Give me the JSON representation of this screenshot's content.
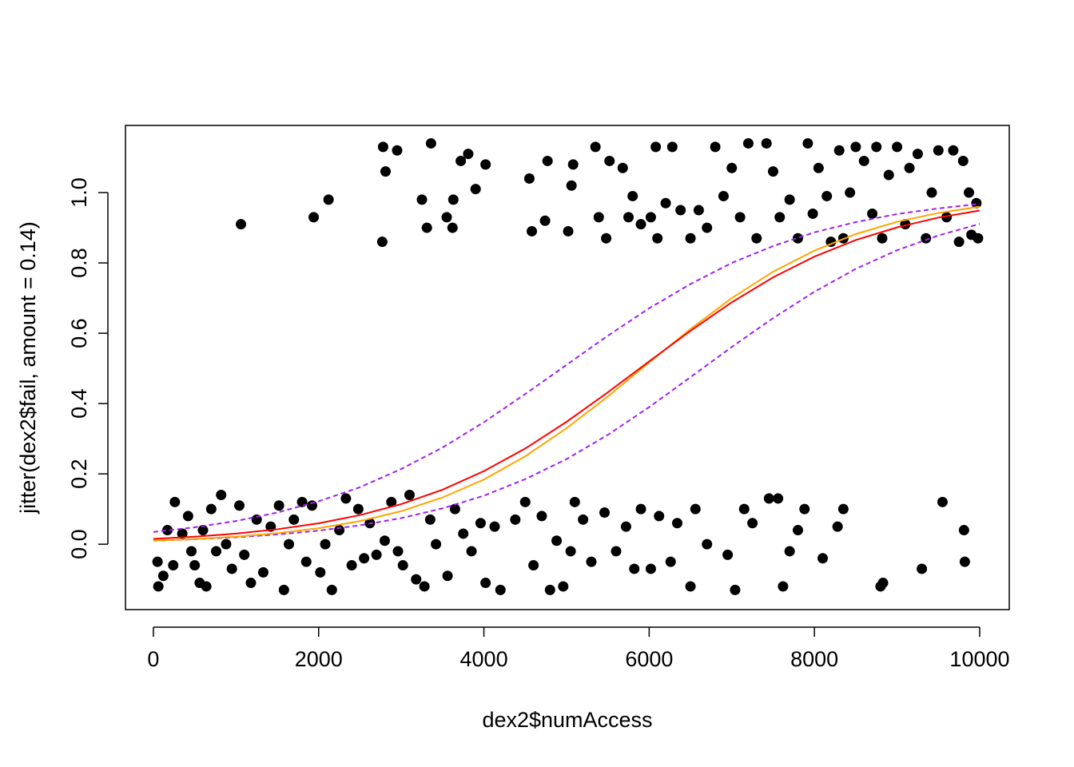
{
  "chart_data": {
    "type": "scatter",
    "xlabel": "dex2$numAccess",
    "ylabel": "jitter(dex2$fail, amount = 0.14)",
    "xlim": [
      -338,
      10358
    ],
    "ylim": [
      -0.186,
      1.191
    ],
    "xticks": [
      0,
      2000,
      4000,
      6000,
      8000,
      10000
    ],
    "yticks": [
      {
        "value": 0,
        "label": "0.0"
      },
      {
        "value": 0.2,
        "label": "0.2"
      },
      {
        "value": 0.4,
        "label": "0.4"
      },
      {
        "value": 0.6,
        "label": "0.6"
      },
      {
        "value": 0.8,
        "label": "0.8"
      },
      {
        "value": 1,
        "label": "1.0"
      }
    ],
    "points": {
      "color": "#000000",
      "x": [
        1060,
        1940,
        2120,
        2770,
        2780,
        2810,
        2950,
        3250,
        3310,
        3360,
        3550,
        3620,
        3630,
        3720,
        3810,
        3900,
        4020,
        4550,
        4580,
        4740,
        4770,
        5020,
        5060,
        5080,
        5350,
        5390,
        5480,
        5520,
        5680,
        5750,
        5800,
        5900,
        6020,
        6100,
        6080,
        6200,
        6280,
        6380,
        6500,
        6600,
        6700,
        6800,
        6900,
        7000,
        7100,
        7200,
        7300,
        7420,
        7500,
        7580,
        7700,
        7800,
        7920,
        7980,
        8050,
        8150,
        8200,
        8300,
        8350,
        8430,
        8500,
        8600,
        8700,
        8750,
        8820,
        8900,
        9000,
        9100,
        9150,
        9250,
        9350,
        9420,
        9500,
        9600,
        9680,
        9750,
        9800,
        9870,
        9900,
        9960,
        9980,
        50,
        60,
        120,
        170,
        240,
        260,
        350,
        420,
        460,
        500,
        560,
        600,
        640,
        700,
        760,
        820,
        880,
        950,
        1040,
        1100,
        1180,
        1250,
        1330,
        1420,
        1520,
        1580,
        1640,
        1700,
        1800,
        1850,
        1920,
        2020,
        2080,
        2160,
        2250,
        2330,
        2400,
        2480,
        2550,
        2620,
        2700,
        2800,
        2880,
        2960,
        3020,
        3100,
        3180,
        3280,
        3350,
        3420,
        3560,
        3650,
        3750,
        3850,
        3960,
        4020,
        4130,
        4200,
        4380,
        4500,
        4600,
        4700,
        4800,
        4880,
        4960,
        5050,
        5100,
        5200,
        5300,
        5460,
        5600,
        5720,
        5820,
        5900,
        6020,
        6120,
        6260,
        6340,
        6500,
        6560,
        6700,
        6950,
        7040,
        7150,
        7250,
        7450,
        7560,
        7620,
        7700,
        7800,
        7880,
        8100,
        8280,
        8350,
        8800,
        8830,
        9300,
        9550,
        9810,
        9820
      ],
      "y": [
        0.91,
        0.93,
        0.98,
        0.86,
        1.13,
        1.06,
        1.12,
        0.98,
        0.9,
        1.14,
        0.93,
        0.9,
        0.98,
        1.09,
        1.11,
        1.01,
        1.08,
        1.04,
        0.89,
        0.92,
        1.09,
        0.89,
        1.02,
        1.08,
        1.13,
        0.93,
        0.87,
        1.09,
        1.07,
        0.93,
        0.99,
        0.91,
        0.93,
        0.87,
        1.13,
        0.97,
        1.13,
        0.95,
        0.87,
        0.95,
        0.9,
        1.13,
        0.99,
        1.07,
        0.93,
        1.14,
        0.87,
        1.14,
        1.06,
        0.93,
        0.98,
        0.87,
        1.14,
        0.94,
        1.07,
        0.99,
        0.86,
        1.12,
        0.87,
        1.0,
        1.13,
        1.09,
        0.94,
        1.13,
        0.87,
        1.05,
        1.13,
        0.91,
        1.07,
        1.11,
        0.87,
        1.0,
        1.12,
        0.93,
        1.12,
        0.86,
        1.09,
        1.0,
        0.88,
        0.97,
        0.87,
        -0.05,
        -0.12,
        -0.09,
        0.04,
        -0.06,
        0.12,
        0.03,
        0.08,
        -0.02,
        -0.06,
        -0.11,
        0.04,
        -0.12,
        0.1,
        -0.02,
        0.14,
        0.0,
        -0.07,
        0.11,
        -0.03,
        -0.11,
        0.07,
        -0.08,
        0.05,
        0.11,
        -0.13,
        0.0,
        0.07,
        0.12,
        -0.05,
        0.11,
        -0.08,
        0.0,
        -0.13,
        0.04,
        0.13,
        -0.06,
        0.1,
        -0.04,
        0.06,
        -0.03,
        0.01,
        0.12,
        -0.02,
        -0.06,
        0.14,
        -0.1,
        -0.12,
        0.07,
        0.0,
        -0.09,
        0.1,
        0.03,
        -0.02,
        0.06,
        -0.11,
        0.05,
        -0.13,
        0.07,
        0.12,
        -0.06,
        0.08,
        -0.13,
        0.01,
        -0.12,
        -0.02,
        0.12,
        0.07,
        -0.05,
        0.09,
        -0.02,
        0.05,
        -0.07,
        0.1,
        -0.07,
        0.08,
        -0.05,
        0.06,
        -0.12,
        0.1,
        0.0,
        -0.03,
        -0.13,
        0.1,
        0.06,
        0.13,
        0.13,
        -0.12,
        -0.02,
        0.04,
        0.1,
        -0.04,
        0.05,
        0.1,
        -0.12,
        -0.11,
        -0.07,
        0.12,
        0.04,
        -0.05
      ]
    },
    "curve_x": [
      0,
      500,
      1000,
      1500,
      2000,
      2500,
      3000,
      3500,
      4000,
      4500,
      5000,
      5500,
      6000,
      6500,
      7000,
      7500,
      8000,
      8500,
      9000,
      9500,
      10000
    ],
    "curves": [
      {
        "color": "#a020f0",
        "dashed": true,
        "values": [
          0.035,
          0.048,
          0.066,
          0.09,
          0.122,
          0.162,
          0.214,
          0.275,
          0.347,
          0.427,
          0.51,
          0.593,
          0.671,
          0.74,
          0.8,
          0.848,
          0.887,
          0.916,
          0.939,
          0.955,
          0.968
        ]
      },
      {
        "color": "#a020f0",
        "dashed": true,
        "values": [
          0.01,
          0.014,
          0.0197,
          0.0276,
          0.0386,
          0.0537,
          0.0742,
          0.102,
          0.138,
          0.185,
          0.242,
          0.311,
          0.39,
          0.475,
          0.561,
          0.643,
          0.718,
          0.783,
          0.836,
          0.878,
          0.911
        ]
      },
      {
        "color": "#ffa500",
        "dashed": false,
        "values": [
          0.01,
          0.0146,
          0.0214,
          0.0313,
          0.0455,
          0.0657,
          0.094,
          0.133,
          0.184,
          0.25,
          0.33,
          0.42,
          0.517,
          0.612,
          0.7,
          0.775,
          0.835,
          0.882,
          0.917,
          0.942,
          0.96
        ]
      },
      {
        "color": "#ff0000",
        "dashed": false,
        "values": [
          0.0151,
          0.0213,
          0.0302,
          0.0425,
          0.0595,
          0.0828,
          0.114,
          0.155,
          0.208,
          0.272,
          0.348,
          0.432,
          0.52,
          0.607,
          0.688,
          0.759,
          0.818,
          0.865,
          0.901,
          0.929,
          0.949
        ]
      }
    ]
  }
}
